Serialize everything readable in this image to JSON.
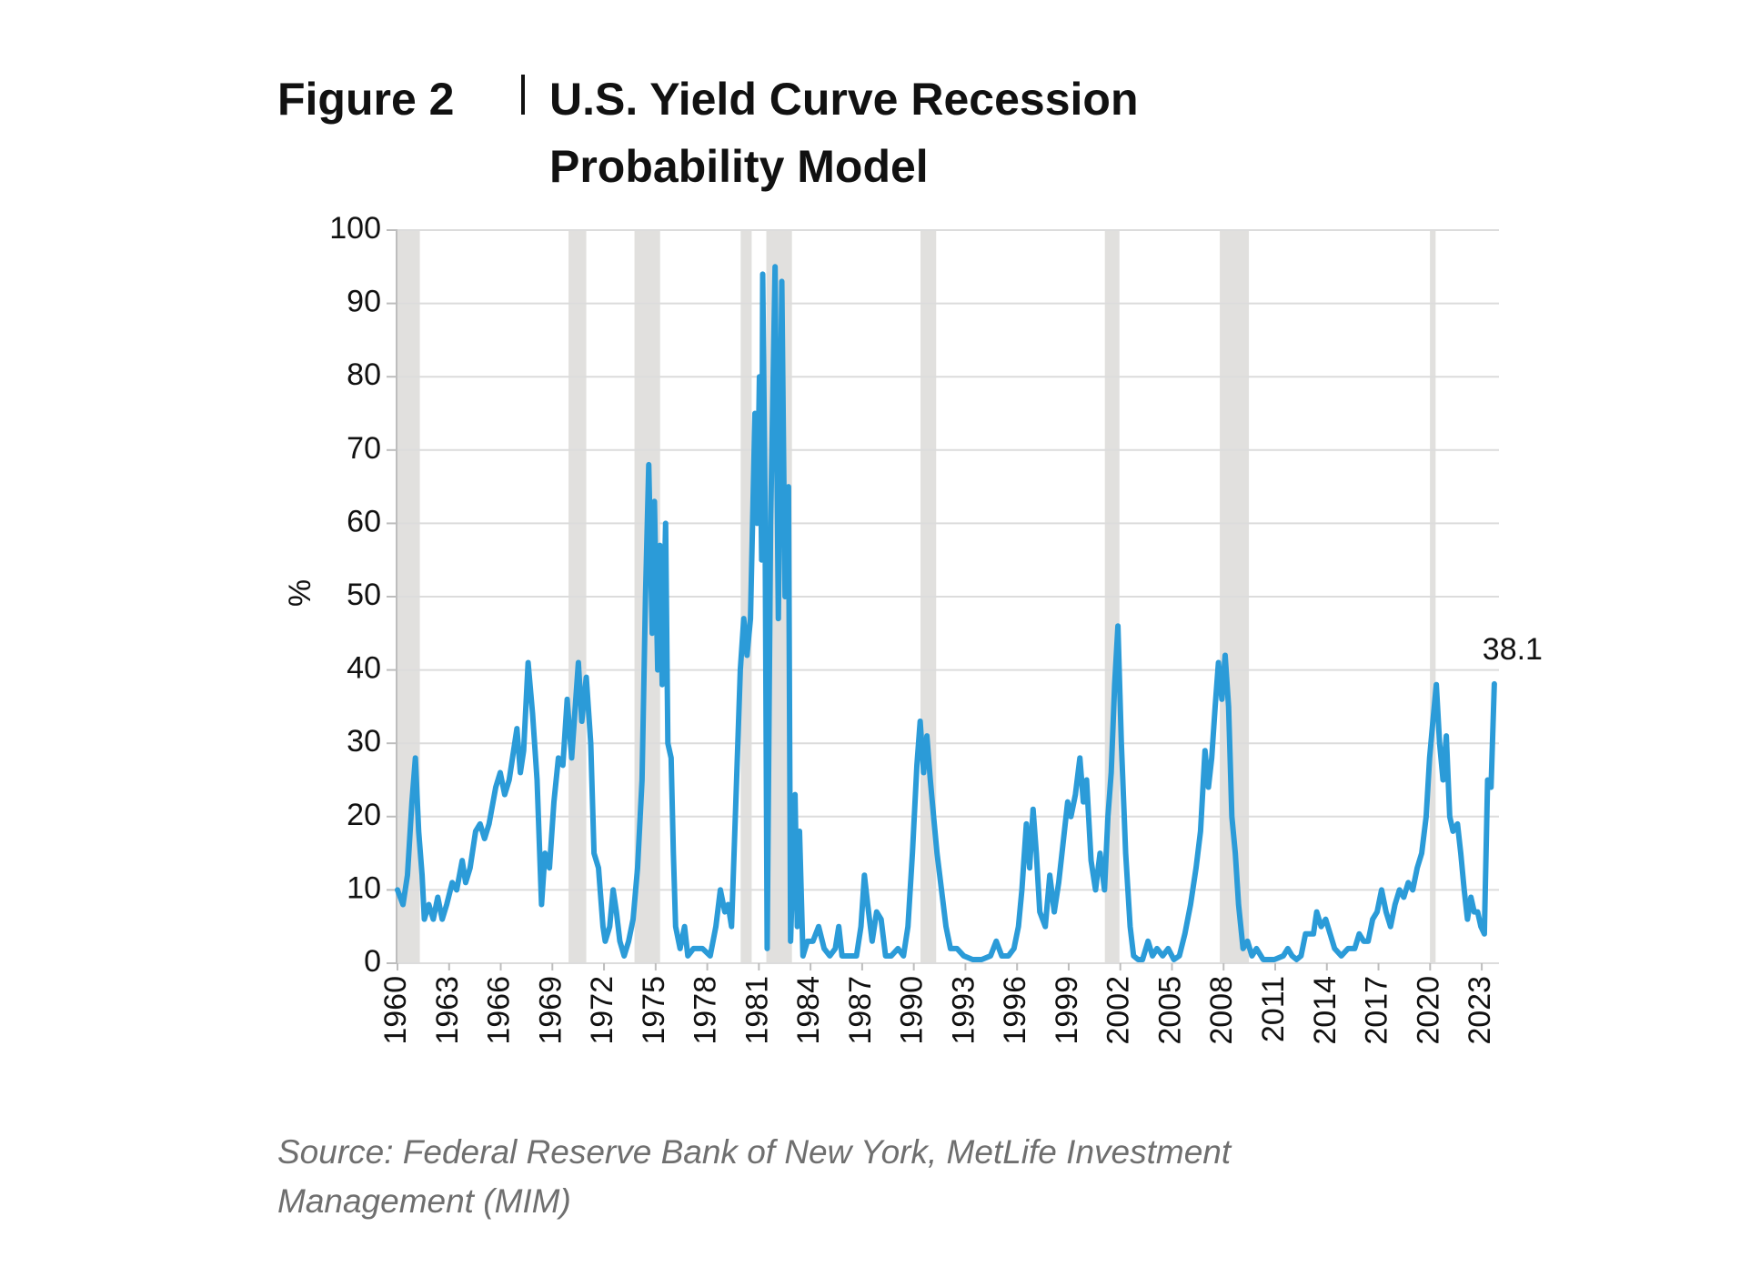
{
  "chart_data": {
    "type": "line",
    "figure_label": "Figure 2",
    "title": "U.S. Yield Curve Recession Probability Model",
    "y_label": "%",
    "source": "Source: Federal Reserve Bank of New York, MetLife Investment Management (MIM)",
    "xlim": [
      1960,
      2024
    ],
    "xticks": [
      1960,
      1963,
      1966,
      1969,
      1972,
      1975,
      1978,
      1981,
      1984,
      1987,
      1990,
      1993,
      1996,
      1999,
      2002,
      2005,
      2008,
      2011,
      2014,
      2017,
      2020,
      2023
    ],
    "ylim": [
      0,
      100
    ],
    "yticks": [
      0,
      10,
      20,
      30,
      40,
      50,
      60,
      70,
      80,
      90,
      100
    ],
    "grid": true,
    "recession_color": "#e1e0de",
    "recessions": [
      [
        1960.0,
        1961.3
      ],
      [
        1969.94,
        1970.97
      ],
      [
        1973.77,
        1975.26
      ],
      [
        1979.94,
        1980.58
      ],
      [
        1981.43,
        1982.92
      ],
      [
        1990.39,
        1991.3
      ],
      [
        2001.1,
        2001.95
      ],
      [
        2007.78,
        2009.47
      ],
      [
        2019.99,
        2020.32
      ]
    ],
    "x": [
      1960.0,
      1960.32,
      1960.58,
      1960.84,
      1961.04,
      1961.23,
      1961.43,
      1961.56,
      1961.82,
      1962.08,
      1962.34,
      1962.6,
      1962.86,
      1963.18,
      1963.44,
      1963.76,
      1963.96,
      1964.22,
      1964.54,
      1964.8,
      1965.06,
      1965.32,
      1965.71,
      1965.97,
      1966.23,
      1966.49,
      1966.94,
      1967.14,
      1967.33,
      1967.59,
      1967.85,
      1968.11,
      1968.37,
      1968.57,
      1968.83,
      1969.09,
      1969.35,
      1969.61,
      1969.86,
      1970.12,
      1970.51,
      1970.71,
      1970.97,
      1971.23,
      1971.42,
      1971.68,
      1971.94,
      1972.07,
      1972.33,
      1972.53,
      1972.72,
      1972.92,
      1973.17,
      1973.43,
      1973.69,
      1973.95,
      1974.21,
      1974.41,
      1974.6,
      1974.8,
      1974.93,
      1975.12,
      1975.25,
      1975.38,
      1975.58,
      1975.71,
      1975.9,
      1976.03,
      1976.16,
      1976.42,
      1976.68,
      1976.87,
      1977.2,
      1977.72,
      1978.17,
      1978.5,
      1978.76,
      1979.02,
      1979.21,
      1979.41,
      1979.66,
      1979.92,
      1980.12,
      1980.31,
      1980.51,
      1980.77,
      1980.9,
      1981.03,
      1981.16,
      1981.22,
      1981.35,
      1981.48,
      1981.68,
      1981.94,
      1982.13,
      1982.33,
      1982.52,
      1982.72,
      1982.84,
      1983.1,
      1983.23,
      1983.36,
      1983.56,
      1983.82,
      1984.14,
      1984.47,
      1984.79,
      1985.12,
      1985.44,
      1985.64,
      1985.83,
      1986.15,
      1986.67,
      1986.93,
      1987.13,
      1987.32,
      1987.58,
      1987.84,
      1988.1,
      1988.36,
      1988.69,
      1989.08,
      1989.4,
      1989.66,
      1989.92,
      1990.18,
      1990.37,
      1990.57,
      1990.76,
      1990.96,
      1991.15,
      1991.35,
      1991.61,
      1991.87,
      1992.13,
      1992.51,
      1992.9,
      1993.42,
      1993.94,
      1994.46,
      1994.79,
      1995.11,
      1995.5,
      1995.82,
      1996.08,
      1996.28,
      1996.54,
      1996.73,
      1996.93,
      1997.12,
      1997.32,
      1997.64,
      1997.9,
      1998.16,
      1998.42,
      1998.75,
      1998.94,
      1999.13,
      1999.39,
      1999.65,
      1999.85,
      2000.04,
      2000.3,
      2000.56,
      2000.82,
      2001.08,
      2001.28,
      2001.47,
      2001.67,
      2001.86,
      2002.06,
      2002.31,
      2002.57,
      2002.77,
      2003.03,
      2003.29,
      2003.61,
      2003.87,
      2004.13,
      2004.46,
      2004.78,
      2005.11,
      2005.43,
      2005.75,
      2006.08,
      2006.4,
      2006.66,
      2006.92,
      2007.12,
      2007.31,
      2007.51,
      2007.7,
      2007.9,
      2008.09,
      2008.29,
      2008.48,
      2008.68,
      2008.87,
      2009.13,
      2009.39,
      2009.65,
      2009.91,
      2010.3,
      2010.95,
      2011.47,
      2011.73,
      2011.98,
      2012.24,
      2012.5,
      2012.76,
      2013.02,
      2013.22,
      2013.41,
      2013.67,
      2013.93,
      2014.19,
      2014.45,
      2014.84,
      2015.23,
      2015.62,
      2015.88,
      2016.14,
      2016.4,
      2016.66,
      2016.92,
      2017.18,
      2017.44,
      2017.7,
      2017.96,
      2018.22,
      2018.47,
      2018.73,
      2018.99,
      2019.25,
      2019.51,
      2019.77,
      2019.97,
      2020.16,
      2020.36,
      2020.55,
      2020.75,
      2020.94,
      2021.14,
      2021.33,
      2021.59,
      2021.78,
      2021.98,
      2022.17,
      2022.37,
      2022.56,
      2022.76,
      2022.95,
      2023.15,
      2023.34,
      2023.54,
      2023.73
    ],
    "series": [
      {
        "color": "#2b9bd8",
        "values": [
          10,
          8,
          12,
          22,
          28,
          18,
          12,
          6,
          8,
          6,
          9,
          6,
          8,
          11,
          10,
          14,
          11,
          13,
          18,
          19,
          17,
          19,
          24,
          26,
          23,
          25,
          32,
          26,
          29,
          41,
          34,
          25,
          8,
          15,
          13,
          22,
          28,
          27,
          36,
          28,
          41,
          33,
          39,
          30,
          15,
          13,
          5,
          3,
          5,
          10,
          7,
          3,
          1,
          3,
          6,
          13,
          25,
          50,
          68,
          45,
          63,
          40,
          57,
          38,
          60,
          30,
          28,
          15,
          5,
          2,
          5,
          1,
          2,
          2,
          1,
          5,
          10,
          7,
          8,
          5,
          22,
          40,
          47,
          42,
          47,
          75,
          60,
          80,
          55,
          94,
          65,
          2,
          60,
          95,
          47,
          93,
          50,
          65,
          3,
          23,
          5,
          18,
          1,
          3,
          3,
          5,
          2,
          1,
          2,
          5,
          1,
          1,
          1,
          5,
          12,
          8,
          3,
          7,
          6,
          1,
          1,
          2,
          1,
          5,
          15,
          27,
          33,
          26,
          31,
          25,
          20,
          15,
          10,
          5,
          2,
          2,
          1,
          0.5,
          0.5,
          1,
          3,
          1,
          1,
          2,
          5,
          10,
          19,
          13,
          21,
          15,
          7,
          5,
          12,
          7,
          11,
          18,
          22,
          20,
          23,
          28,
          22,
          25,
          14,
          10,
          15,
          10,
          20,
          26,
          38,
          46,
          30,
          15,
          5,
          1,
          0.5,
          0.5,
          3,
          1,
          2,
          1,
          2,
          0.5,
          1,
          4,
          8,
          13,
          18,
          29,
          24,
          28,
          35,
          41,
          36,
          42,
          35,
          20,
          15,
          8,
          2,
          3,
          1,
          2,
          0.5,
          0.5,
          1,
          2,
          1,
          0.5,
          1,
          4,
          4,
          4,
          7,
          5,
          6,
          4,
          2,
          1,
          2,
          2,
          4,
          3,
          3,
          6,
          7,
          10,
          7,
          5,
          8,
          10,
          9,
          11,
          10,
          13,
          15,
          20,
          28,
          33,
          38,
          30,
          25,
          31,
          20,
          18,
          19,
          15,
          10,
          6,
          9,
          7,
          7,
          5,
          4,
          25,
          24,
          38.1
        ]
      }
    ]
  }
}
